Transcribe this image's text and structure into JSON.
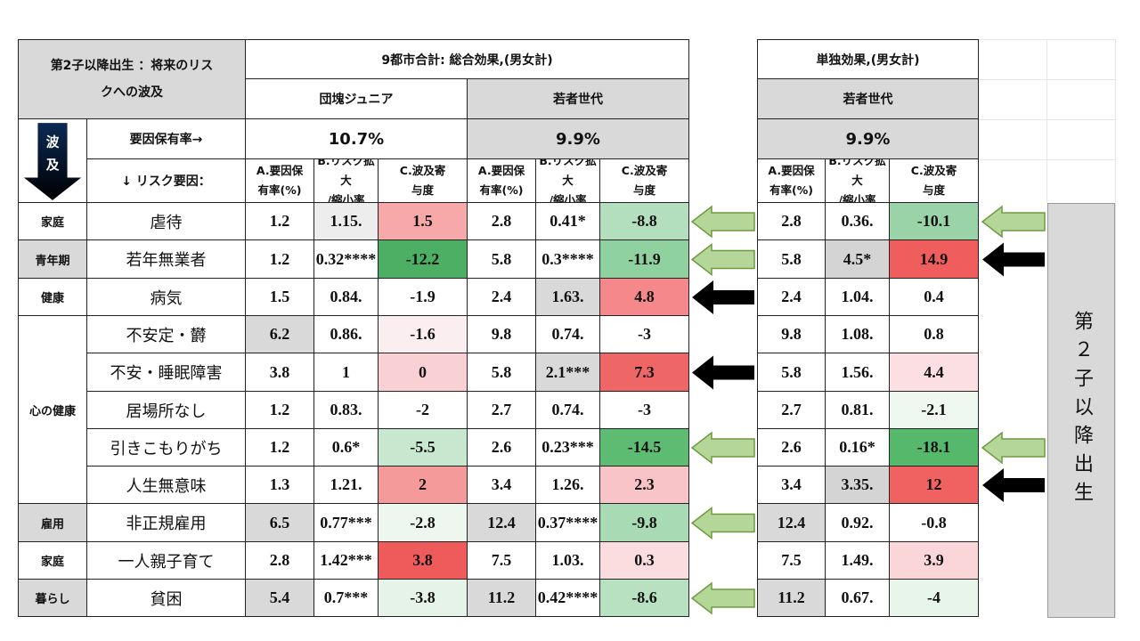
{
  "title_line1": "第2子以降出生 ：将来のリス",
  "title_line2": "クへの波及",
  "group1_title": "9都市合計: 総合効果,(男女計)",
  "group2_title": "単独効果,(男女計)",
  "gen1_label": "団塊ジュニア",
  "gen2_label": "若者世代",
  "gen3_label": "若者世代",
  "hamon_char1": "波",
  "hamon_char2": "及",
  "prevalence_label": "要因保有率→",
  "risk_label": "↓ リスク要因：",
  "prevalence": [
    "10.7%",
    "9.9%",
    "9.9%"
  ],
  "col_a_line1": "A.要因保",
  "col_a_line2": "有率(%)",
  "col_b_line1": "B.リスク拡大",
  "col_b_line2": "/縮小率",
  "col_c_line1": "C.波及寄",
  "col_c_line2": "与度",
  "side_label": "第２子以降出生",
  "categories": [
    {
      "label": "家庭",
      "style": "white"
    },
    {
      "label": "青年期",
      "style": "gray"
    },
    {
      "label": "健康",
      "style": "white"
    },
    {
      "label": "心の健康",
      "style": "white"
    },
    {
      "label": "雇用",
      "style": "gray"
    },
    {
      "label": "家庭",
      "style": "white"
    },
    {
      "label": "暮らし",
      "style": "gray"
    }
  ],
  "rows": [
    {
      "item": "虐待",
      "g1": [
        "1.2",
        "1.15.",
        "1.5"
      ],
      "g2": [
        "2.8",
        "0.41*",
        "-8.8"
      ],
      "g3": [
        "2.8",
        "0.36.",
        "-10.1"
      ],
      "arrow2": "green",
      "arrow3": "green"
    },
    {
      "item": "若年無業者",
      "g1": [
        "1.2",
        "0.32****",
        "-12.2"
      ],
      "g2": [
        "5.8",
        "0.3****",
        "-11.9"
      ],
      "g3": [
        "5.8",
        "4.5*",
        "14.9"
      ],
      "arrow2": "green",
      "arrow3": "black"
    },
    {
      "item": "病気",
      "g1": [
        "1.5",
        "0.84.",
        "-1.9"
      ],
      "g2": [
        "2.4",
        "1.63.",
        "4.8"
      ],
      "g3": [
        "2.4",
        "1.04.",
        "0.4"
      ],
      "arrow2": "black",
      "arrow3": ""
    },
    {
      "item": "不安定・欝",
      "g1": [
        "6.2",
        "0.86.",
        "-1.6"
      ],
      "g2": [
        "9.8",
        "0.74.",
        "-3"
      ],
      "g3": [
        "9.8",
        "1.08.",
        "0.8"
      ],
      "arrow2": "",
      "arrow3": ""
    },
    {
      "item": "不安・睡眠障害",
      "g1": [
        "3.8",
        "1",
        "0"
      ],
      "g2": [
        "5.8",
        "2.1***",
        "7.3"
      ],
      "g3": [
        "5.8",
        "1.56.",
        "4.4"
      ],
      "arrow2": "black",
      "arrow3": ""
    },
    {
      "item": "居場所なし",
      "g1": [
        "1.2",
        "0.83.",
        "-2"
      ],
      "g2": [
        "2.7",
        "0.74.",
        "-3"
      ],
      "g3": [
        "2.7",
        "0.81.",
        "-2.1"
      ],
      "arrow2": "",
      "arrow3": ""
    },
    {
      "item": "引きこもりがち",
      "g1": [
        "1.2",
        "0.6*",
        "-5.5"
      ],
      "g2": [
        "2.6",
        "0.23***",
        "-14.5"
      ],
      "g3": [
        "2.6",
        "0.16*",
        "-18.1"
      ],
      "arrow2": "green",
      "arrow3": "green"
    },
    {
      "item": "人生無意味",
      "g1": [
        "1.3",
        "1.21.",
        "2"
      ],
      "g2": [
        "3.4",
        "1.26.",
        "2.3"
      ],
      "g3": [
        "3.4",
        "3.35.",
        "12"
      ],
      "arrow2": "",
      "arrow3": "black"
    },
    {
      "item": "非正規雇用",
      "g1": [
        "6.5",
        "0.77***",
        "-2.8"
      ],
      "g2": [
        "12.4",
        "0.37****",
        "-9.8"
      ],
      "g3": [
        "12.4",
        "0.92.",
        "-0.8"
      ],
      "arrow2": "green",
      "arrow3": ""
    },
    {
      "item": "一人親子育て",
      "g1": [
        "2.8",
        "1.42***",
        "3.8"
      ],
      "g2": [
        "7.5",
        "1.03.",
        "0.3"
      ],
      "g3": [
        "7.5",
        "1.49.",
        "3.9"
      ],
      "arrow2": "",
      "arrow3": ""
    },
    {
      "item": "貧困",
      "g1": [
        "5.4",
        "0.7***",
        "-3.8"
      ],
      "g2": [
        "11.2",
        "0.42****",
        "-8.6"
      ],
      "g3": [
        "11.2",
        "0.67.",
        "-4"
      ],
      "arrow2": "green",
      "arrow3": ""
    }
  ],
  "shades": {
    "g1": [
      [
        "",
        "#ededed",
        "#f7a8a8"
      ],
      [
        "",
        "",
        "#4caf63"
      ],
      [
        "",
        "",
        ""
      ],
      [
        "#d9d9d9",
        "",
        "#fbeef0"
      ],
      [
        "",
        "",
        "#f9d0d4"
      ],
      [
        "",
        "",
        ""
      ],
      [
        "",
        "",
        "#c7e8cf"
      ],
      [
        "",
        "",
        "#f59a9a"
      ],
      [
        "#d9d9d9",
        "",
        "#edf6ef"
      ],
      [
        "",
        "",
        "#ef5b5b"
      ],
      [
        "#d9d9d9",
        "",
        "#e5f3e8"
      ]
    ],
    "g2": [
      [
        "",
        "",
        "#b4dfbe"
      ],
      [
        "",
        "",
        "#8fd19f"
      ],
      [
        "",
        "#d9d9d9",
        "#f4888a"
      ],
      [
        "",
        "",
        ""
      ],
      [
        "",
        "#d9d9d9",
        "#ee6666"
      ],
      [
        "",
        "",
        ""
      ],
      [
        "",
        "",
        "#5dbb72"
      ],
      [
        "",
        "",
        "#f9c4c8"
      ],
      [
        "#d9d9d9",
        "",
        "#a8dab3"
      ],
      [
        "",
        "",
        "#fbdde0"
      ],
      [
        "#d9d9d9",
        "",
        "#b8e1c2"
      ]
    ],
    "g3": [
      [
        "",
        "",
        "#9bd3a9"
      ],
      [
        "",
        "#d4d4d4",
        "#ef5d5d"
      ],
      [
        "",
        "",
        ""
      ],
      [
        "",
        "",
        ""
      ],
      [
        "",
        "",
        "#fbdfe2"
      ],
      [
        "",
        "",
        "#eef7f0"
      ],
      [
        "",
        "",
        "#55b86b"
      ],
      [
        "",
        "#d4d4d4",
        "#f06262"
      ],
      [
        "#d9d9d9",
        "",
        ""
      ],
      [
        "",
        "",
        "#fbd6d9"
      ],
      [
        "#d9d9d9",
        "",
        "#e8f5ea"
      ]
    ]
  }
}
